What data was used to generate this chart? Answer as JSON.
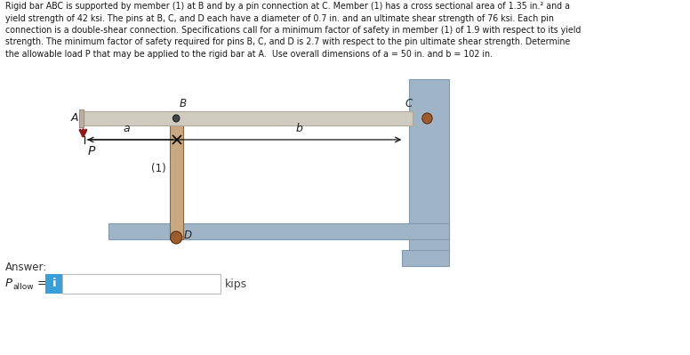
{
  "text_line1": "Rigid bar ABC is supported by member (1) at B and by a pin connection at C. Member (1) has a cross sectional area of 1.35 in.² and a",
  "text_line2": "yield strength of 42 ksi. The pins at B, C, and D each have a diameter of 0.7 in. and an ultimate shear strength of 76 ksi. Each pin",
  "text_line3": "connection is a double-shear connection. Specifications call for a minimum factor of safety in member (1) of 1.9 with respect to its yield",
  "text_line4": "strength. The minimum factor of safety required for pins B, C, and D is 2.7 with respect to the pin ultimate shear strength. Determine",
  "text_line5": "the allowable load P that may be applied to the rigid bar at A.  Use overall dimensions of a = 50 in. and b = 102 in.",
  "bg_color": "#ffffff",
  "text_color": "#1a1a1a",
  "wall_color": "#9fb4c7",
  "wall_edge": "#8099ae",
  "bar_color": "#d0cbbf",
  "bar_edge": "#b0a898",
  "member_color": "#c9a882",
  "member_edge": "#8c6840",
  "pin_dark": "#6b3a1f",
  "pin_brown": "#9e5c2e",
  "pin_small": "#444444",
  "arrow_color": "#8b1a1a",
  "input_blue": "#3a9fd8",
  "dim_color": "#111111"
}
